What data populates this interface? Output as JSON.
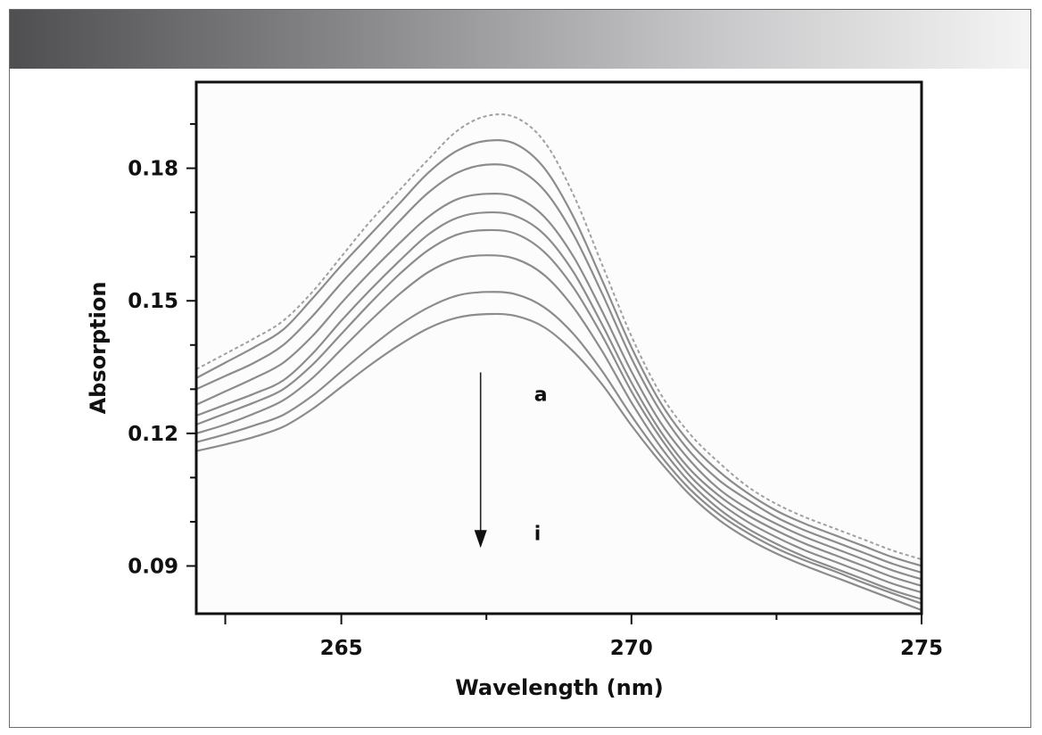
{
  "chart_data": {
    "type": "line",
    "xlabel": "Wavelength (nm)",
    "ylabel": "Absorption",
    "xlim": [
      262.5,
      275
    ],
    "ylim": [
      0.0792,
      0.1995
    ],
    "xticks": [
      265,
      270,
      275
    ],
    "yticks": [
      0.09,
      0.12,
      0.15,
      0.18
    ],
    "xtick_labels": [
      "265",
      "270",
      "275"
    ],
    "ytick_labels": [
      "0.09",
      "0.12",
      "0.15",
      "0.18"
    ],
    "grid": false,
    "legend": "none",
    "annotations": [
      {
        "text": "a",
        "x": 268.6,
        "y": 0.129
      },
      {
        "text": "i",
        "x": 268.6,
        "y": 0.0975
      }
    ],
    "arrow": {
      "x": 267.4,
      "y_start": 0.1338,
      "y_end": 0.0945
    },
    "x": [
      262.5,
      263.0,
      263.5,
      264.0,
      264.5,
      265.0,
      265.5,
      266.0,
      266.5,
      267.0,
      267.5,
      268.0,
      268.5,
      269.0,
      269.5,
      270.0,
      270.5,
      271.0,
      271.5,
      272.0,
      272.5,
      273.0,
      273.5,
      274.0,
      274.5,
      275.0
    ],
    "series": [
      {
        "dashed": true,
        "values": [
          0.1345,
          0.138,
          0.1415,
          0.1455,
          0.152,
          0.16,
          0.168,
          0.175,
          0.182,
          0.1885,
          0.1918,
          0.1915,
          0.186,
          0.174,
          0.158,
          0.142,
          0.129,
          0.12,
          0.1135,
          0.108,
          0.104,
          0.101,
          0.0985,
          0.096,
          0.0935,
          0.0915
        ]
      },
      {
        "values": [
          0.1325,
          0.136,
          0.1395,
          0.1435,
          0.1505,
          0.158,
          0.165,
          0.172,
          0.179,
          0.184,
          0.1862,
          0.1855,
          0.18,
          0.169,
          0.1545,
          0.1395,
          0.127,
          0.118,
          0.1115,
          0.1065,
          0.1025,
          0.0995,
          0.097,
          0.0945,
          0.092,
          0.09
        ]
      },
      {
        "values": [
          0.13,
          0.133,
          0.136,
          0.14,
          0.1465,
          0.154,
          0.161,
          0.168,
          0.1745,
          0.179,
          0.1808,
          0.18,
          0.175,
          0.165,
          0.1515,
          0.137,
          0.125,
          0.116,
          0.1095,
          0.105,
          0.101,
          0.098,
          0.0955,
          0.093,
          0.0905,
          0.0885
        ]
      },
      {
        "values": [
          0.1265,
          0.1295,
          0.1325,
          0.136,
          0.142,
          0.1495,
          0.1565,
          0.163,
          0.169,
          0.173,
          0.1742,
          0.1735,
          0.169,
          0.16,
          0.1475,
          0.134,
          0.1225,
          0.114,
          0.1075,
          0.103,
          0.0995,
          0.0965,
          0.094,
          0.0915,
          0.089,
          0.087
        ]
      },
      {
        "values": [
          0.124,
          0.1265,
          0.129,
          0.132,
          0.138,
          0.1455,
          0.1525,
          0.159,
          0.165,
          0.1688,
          0.17,
          0.1692,
          0.165,
          0.1565,
          0.1445,
          0.1315,
          0.1205,
          0.112,
          0.106,
          0.1015,
          0.098,
          0.095,
          0.0925,
          0.09,
          0.0875,
          0.0855
        ]
      },
      {
        "values": [
          0.122,
          0.1245,
          0.127,
          0.13,
          0.1355,
          0.1425,
          0.1495,
          0.156,
          0.1615,
          0.165,
          0.166,
          0.1652,
          0.161,
          0.153,
          0.142,
          0.1295,
          0.119,
          0.1105,
          0.1045,
          0.1,
          0.0965,
          0.0935,
          0.091,
          0.0885,
          0.086,
          0.084
        ]
      },
      {
        "values": [
          0.12,
          0.122,
          0.1245,
          0.1275,
          0.1325,
          0.139,
          0.1455,
          0.1515,
          0.1565,
          0.1595,
          0.1603,
          0.1595,
          0.1558,
          0.1485,
          0.1385,
          0.127,
          0.117,
          0.109,
          0.103,
          0.0985,
          0.095,
          0.092,
          0.0895,
          0.087,
          0.0845,
          0.0825
        ]
      },
      {
        "values": [
          0.118,
          0.1198,
          0.1218,
          0.1242,
          0.1285,
          0.134,
          0.1395,
          0.1445,
          0.1485,
          0.1512,
          0.152,
          0.1515,
          0.1485,
          0.1425,
          0.134,
          0.124,
          0.115,
          0.1075,
          0.1018,
          0.0975,
          0.094,
          0.0912,
          0.0888,
          0.0862,
          0.0838,
          0.0815
        ]
      },
      {
        "values": [
          0.116,
          0.1175,
          0.1192,
          0.1215,
          0.1255,
          0.1305,
          0.1355,
          0.14,
          0.1438,
          0.1462,
          0.147,
          0.1466,
          0.144,
          0.1385,
          0.131,
          0.1218,
          0.1135,
          0.1062,
          0.1005,
          0.0962,
          0.0928,
          0.09,
          0.0875,
          0.085,
          0.0825,
          0.08
        ]
      }
    ]
  }
}
